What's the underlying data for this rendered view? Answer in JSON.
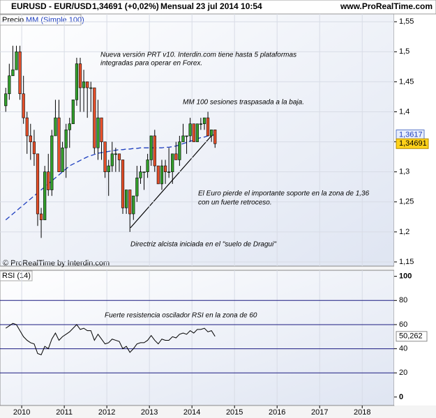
{
  "chart_data": [
    {
      "type": "candlestick",
      "header": {
        "symbol": "EURUSD - EUR/USD",
        "quote": "1,34691 (+0,02%)",
        "period": "Mensual",
        "date": "23 jul 2014 10:54",
        "site": "www.ProRealTime.com"
      },
      "legend": {
        "price": "Precio",
        "ma": "MM (Simple 100)"
      },
      "credit": "© ProRealTime by Interdin.com",
      "annotations": [
        "Nueva versión PRT v10. Interdin.com tiene hasta 5 plataformas",
        "integradas para operar en Forex.",
        "MM 100 sesiones traspasada a la baja.",
        "El Euro pierde el importante soporte en la zona de 1,36",
        "con un fuerte retroceso.",
        "Directriz alcista iniciada en el \"suelo de Dragui\""
      ],
      "x": [
        2009.625,
        2009.708,
        2009.792,
        2009.875,
        2009.958,
        2010.042,
        2010.125,
        2010.208,
        2010.292,
        2010.375,
        2010.458,
        2010.542,
        2010.625,
        2010.708,
        2010.792,
        2010.875,
        2010.958,
        2011.042,
        2011.125,
        2011.208,
        2011.292,
        2011.375,
        2011.458,
        2011.542,
        2011.625,
        2011.708,
        2011.792,
        2011.875,
        2011.958,
        2012.042,
        2012.125,
        2012.208,
        2012.292,
        2012.375,
        2012.458,
        2012.542,
        2012.625,
        2012.708,
        2012.792,
        2012.875,
        2012.958,
        2013.042,
        2013.125,
        2013.208,
        2013.292,
        2013.375,
        2013.458,
        2013.542,
        2013.625,
        2013.708,
        2013.792,
        2013.875,
        2013.958,
        2014.042,
        2014.125,
        2014.208,
        2014.292,
        2014.375,
        2014.458,
        2014.542
      ],
      "open": [
        1.41,
        1.43,
        1.46,
        1.47,
        1.5,
        1.43,
        1.39,
        1.36,
        1.35,
        1.33,
        1.23,
        1.22,
        1.3,
        1.27,
        1.36,
        1.39,
        1.3,
        1.34,
        1.37,
        1.38,
        1.42,
        1.48,
        1.44,
        1.45,
        1.44,
        1.44,
        1.34,
        1.39,
        1.35,
        1.3,
        1.31,
        1.33,
        1.33,
        1.32,
        1.24,
        1.27,
        1.23,
        1.26,
        1.29,
        1.3,
        1.3,
        1.32,
        1.36,
        1.31,
        1.28,
        1.31,
        1.3,
        1.3,
        1.33,
        1.32,
        1.35,
        1.36,
        1.36,
        1.38,
        1.35,
        1.38,
        1.38,
        1.39,
        1.36,
        1.37
      ],
      "high": [
        1.44,
        1.48,
        1.51,
        1.51,
        1.51,
        1.46,
        1.4,
        1.38,
        1.37,
        1.33,
        1.24,
        1.31,
        1.33,
        1.37,
        1.42,
        1.42,
        1.35,
        1.38,
        1.39,
        1.42,
        1.49,
        1.49,
        1.47,
        1.45,
        1.45,
        1.44,
        1.42,
        1.39,
        1.35,
        1.32,
        1.35,
        1.34,
        1.33,
        1.32,
        1.27,
        1.27,
        1.26,
        1.31,
        1.31,
        1.3,
        1.33,
        1.36,
        1.37,
        1.31,
        1.32,
        1.32,
        1.34,
        1.33,
        1.35,
        1.36,
        1.38,
        1.36,
        1.39,
        1.38,
        1.38,
        1.39,
        1.39,
        1.4,
        1.37,
        1.37
      ],
      "low": [
        1.4,
        1.42,
        1.46,
        1.47,
        1.42,
        1.38,
        1.33,
        1.32,
        1.31,
        1.21,
        1.19,
        1.22,
        1.26,
        1.26,
        1.36,
        1.3,
        1.3,
        1.29,
        1.34,
        1.38,
        1.41,
        1.4,
        1.4,
        1.39,
        1.4,
        1.33,
        1.32,
        1.32,
        1.29,
        1.26,
        1.3,
        1.3,
        1.3,
        1.23,
        1.23,
        1.2,
        1.22,
        1.25,
        1.28,
        1.27,
        1.29,
        1.31,
        1.3,
        1.28,
        1.27,
        1.28,
        1.29,
        1.28,
        1.32,
        1.31,
        1.35,
        1.33,
        1.35,
        1.35,
        1.35,
        1.37,
        1.37,
        1.36,
        1.35,
        1.34
      ],
      "close": [
        1.43,
        1.46,
        1.47,
        1.5,
        1.43,
        1.39,
        1.36,
        1.35,
        1.33,
        1.23,
        1.22,
        1.3,
        1.27,
        1.36,
        1.39,
        1.3,
        1.34,
        1.37,
        1.38,
        1.42,
        1.48,
        1.44,
        1.45,
        1.44,
        1.44,
        1.34,
        1.39,
        1.35,
        1.3,
        1.31,
        1.33,
        1.33,
        1.32,
        1.24,
        1.27,
        1.23,
        1.26,
        1.29,
        1.3,
        1.3,
        1.32,
        1.36,
        1.31,
        1.28,
        1.31,
        1.3,
        1.3,
        1.33,
        1.32,
        1.35,
        1.36,
        1.36,
        1.38,
        1.35,
        1.38,
        1.38,
        1.39,
        1.36,
        1.37,
        1.34691
      ],
      "up_color": "#33a02c",
      "down_color": "#e8502a",
      "ma": {
        "name": "MM (Simple 100)",
        "color": "#1f3fbf",
        "values": [
          1.22,
          1.225,
          1.23,
          1.235,
          1.24,
          1.245,
          1.25,
          1.255,
          1.26,
          1.265,
          1.27,
          1.275,
          1.28,
          1.285,
          1.29,
          1.295,
          1.3,
          1.305,
          1.31,
          1.313,
          1.316,
          1.319,
          1.322,
          1.325,
          1.327,
          1.329,
          1.331,
          1.332,
          1.333,
          1.334,
          1.335,
          1.336,
          1.337,
          1.337,
          1.338,
          1.338,
          1.339,
          1.339,
          1.34,
          1.34,
          1.34,
          1.34,
          1.34,
          1.34,
          1.34,
          1.341,
          1.341,
          1.342,
          1.343,
          1.345,
          1.347,
          1.349,
          1.351,
          1.353,
          1.355,
          1.357,
          1.358,
          1.36,
          1.361,
          1.3617
        ]
      },
      "ma_last": {
        "value": 1.3617,
        "label": "1,3617"
      },
      "last_price": {
        "value": 1.34691,
        "label": "1,34691"
      },
      "xlim": [
        2009.49,
        2018.75
      ],
      "xticks": [
        2010,
        2011,
        2012,
        2013,
        2014,
        2015,
        2016,
        2017,
        2018
      ],
      "ylim": [
        1.143,
        1.563
      ],
      "yticks": [
        {
          "value": 1.15,
          "label": "1,15"
        },
        {
          "value": 1.2,
          "label": "1,2"
        },
        {
          "value": 1.25,
          "label": "1,25"
        },
        {
          "value": 1.3,
          "label": "1,3"
        },
        {
          "value": 1.35,
          "label": "1,35"
        },
        {
          "value": 1.4,
          "label": "1,4"
        },
        {
          "value": 1.45,
          "label": "1,45"
        },
        {
          "value": 1.5,
          "label": "1,5"
        },
        {
          "value": 1.55,
          "label": "1,55"
        }
      ],
      "grid": true
    },
    {
      "type": "line",
      "title": "RSI (14)",
      "annotation": "Fuerte resistencia oscilador RSI en la zona de 60",
      "series": [
        {
          "name": "RSI (14)",
          "color": "#000000",
          "values": [
            57,
            59,
            61,
            60,
            55,
            50,
            47,
            45,
            44,
            36,
            35,
            42,
            40,
            48,
            53,
            47,
            50,
            52,
            54,
            57,
            60,
            56,
            57,
            55,
            55,
            47,
            52,
            48,
            44,
            45,
            48,
            47,
            46,
            40,
            42,
            37,
            40,
            44,
            45,
            45,
            47,
            51,
            47,
            44,
            48,
            47,
            47,
            50,
            49,
            52,
            53,
            52,
            55,
            53,
            56,
            56,
            57,
            54,
            55,
            50.262
          ]
        }
      ],
      "last_value": {
        "value": 50.262,
        "label": "50,262"
      },
      "levels": [
        80,
        60,
        40,
        20
      ],
      "level_color": "#1a1a80",
      "ylim": [
        -7,
        105
      ],
      "yticks": [
        0,
        20,
        40,
        60,
        80,
        100
      ]
    }
  ]
}
